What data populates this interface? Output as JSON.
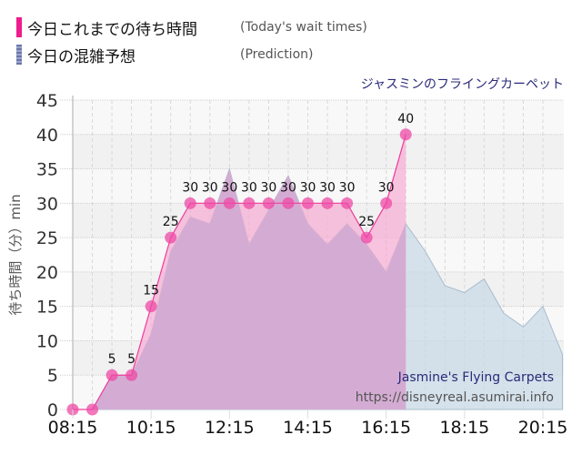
{
  "legend": [
    {
      "label_jp": "今日これまでの待ち時間",
      "label_en": "(Today's wait times)",
      "color": "#ee1c8c"
    },
    {
      "label_jp": "今日の混雑予想",
      "label_en": "(Prediction)",
      "color": "#7a86b8"
    }
  ],
  "ride_name": "ジャスミンのフライングカーペット",
  "watermark": {
    "name": "Jasmine's Flying Carpets",
    "url": "https://disneyreal.asumirai.info"
  },
  "chart_data": {
    "type": "area",
    "title": "ジャスミンのフライングカーペット",
    "xlabel": "",
    "ylabel": "待ち時間（分）min",
    "ylim": [
      0,
      45
    ],
    "yticks": [
      0,
      5,
      10,
      15,
      20,
      25,
      30,
      35,
      40,
      45
    ],
    "xticks": [
      "08:15",
      "10:15",
      "12:15",
      "14:15",
      "16:15",
      "18:15",
      "20:15"
    ],
    "grid": true,
    "series": [
      {
        "name": "今日これまでの待ち時間 (Today's wait times)",
        "color": "#ee1c8c",
        "x": [
          "08:15",
          "08:45",
          "09:15",
          "09:45",
          "10:15",
          "10:45",
          "11:15",
          "11:45",
          "12:15",
          "12:45",
          "13:15",
          "13:45",
          "14:15",
          "14:45",
          "15:15",
          "15:45",
          "16:15",
          "16:45"
        ],
        "values": [
          0,
          0,
          5,
          5,
          15,
          25,
          30,
          30,
          30,
          30,
          30,
          30,
          30,
          30,
          30,
          25,
          30,
          40
        ]
      },
      {
        "name": "今日の混雑予想 (Prediction)",
        "color": "#9fb6cc",
        "x": [
          "08:15",
          "08:45",
          "09:15",
          "09:45",
          "10:15",
          "10:45",
          "11:15",
          "11:45",
          "12:15",
          "12:45",
          "13:15",
          "13:45",
          "14:15",
          "14:45",
          "15:15",
          "15:45",
          "16:15",
          "16:45",
          "17:15",
          "17:45",
          "18:15",
          "18:45",
          "19:15",
          "19:45",
          "20:15",
          "20:45"
        ],
        "values": [
          0,
          0,
          5,
          5,
          11,
          23,
          28,
          27,
          35,
          24,
          29,
          34,
          27,
          24,
          27,
          24,
          20,
          27,
          23,
          18,
          17,
          19,
          14,
          12,
          15,
          8
        ]
      }
    ]
  }
}
